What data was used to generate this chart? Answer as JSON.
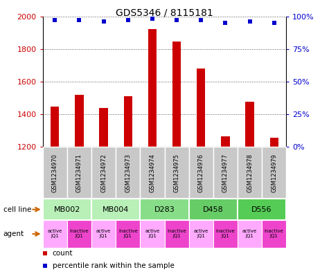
{
  "title": "GDS5346 / 8115181",
  "samples": [
    "GSM1234970",
    "GSM1234971",
    "GSM1234972",
    "GSM1234973",
    "GSM1234974",
    "GSM1234975",
    "GSM1234976",
    "GSM1234977",
    "GSM1234978",
    "GSM1234979"
  ],
  "counts": [
    1445,
    1520,
    1440,
    1510,
    1920,
    1845,
    1680,
    1265,
    1475,
    1255
  ],
  "percentiles": [
    97,
    97,
    96,
    97,
    98,
    97,
    97,
    95,
    96,
    95
  ],
  "ylim_left": [
    1200,
    2000
  ],
  "ylim_right": [
    0,
    100
  ],
  "yticks_left": [
    1200,
    1400,
    1600,
    1800,
    2000
  ],
  "yticks_right": [
    0,
    25,
    50,
    75,
    100
  ],
  "cell_lines": [
    {
      "label": "MB002",
      "span": [
        0,
        2
      ],
      "color": "#b8f0b8"
    },
    {
      "label": "MB004",
      "span": [
        2,
        4
      ],
      "color": "#b8f0b8"
    },
    {
      "label": "D283",
      "span": [
        4,
        6
      ],
      "color": "#88dd88"
    },
    {
      "label": "D458",
      "span": [
        6,
        8
      ],
      "color": "#66cc66"
    },
    {
      "label": "D556",
      "span": [
        8,
        10
      ],
      "color": "#55cc55"
    }
  ],
  "agents": [
    {
      "label": "active\nJQ1",
      "color": "#ffaaff"
    },
    {
      "label": "inactive\nJQ1",
      "color": "#ee44cc"
    },
    {
      "label": "active\nJQ1",
      "color": "#ffaaff"
    },
    {
      "label": "inactive\nJQ1",
      "color": "#ee44cc"
    },
    {
      "label": "active\nJQ1",
      "color": "#ffaaff"
    },
    {
      "label": "inactive\nJQ1",
      "color": "#ee44cc"
    },
    {
      "label": "active\nJQ1",
      "color": "#ffaaff"
    },
    {
      "label": "inactive\nJQ1",
      "color": "#ee44cc"
    },
    {
      "label": "active\nJQ1",
      "color": "#ffaaff"
    },
    {
      "label": "inactive\nJQ1",
      "color": "#ee44cc"
    }
  ],
  "bar_color": "#cc0000",
  "dot_color": "#0000cc",
  "grid_color": "#555555",
  "left_axis_color": "#cc0000",
  "right_axis_color": "#0000cc",
  "sample_box_color": "#c8c8c8",
  "bg_color": "#ffffff",
  "arrow_color": "#cc6600"
}
